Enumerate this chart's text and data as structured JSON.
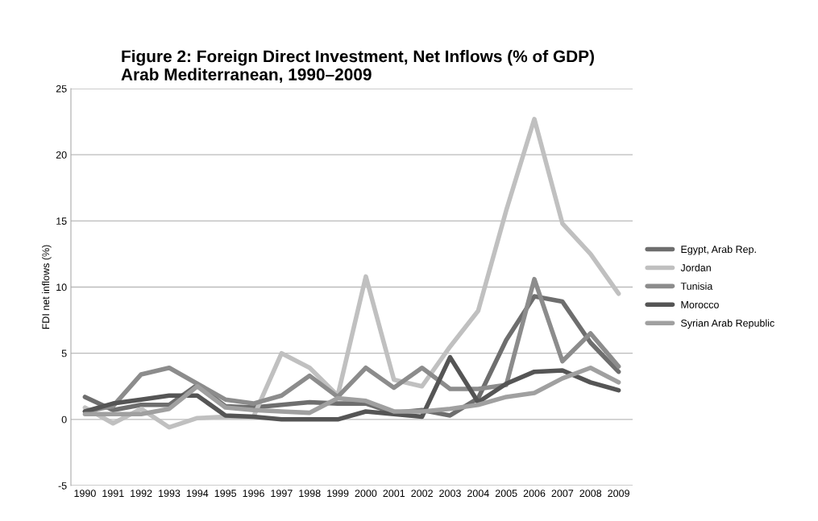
{
  "chart_data": {
    "type": "line",
    "title": "Figure 2: Foreign Direct Investment, Net Inflows (% of GDP)\nArab Mediterranean, 1990–2009",
    "ylabel": "FDI net inflows (%)",
    "categories": [
      "1990",
      "1991",
      "1992",
      "1993",
      "1994",
      "1995",
      "1996",
      "1997",
      "1998",
      "1999",
      "2000",
      "2001",
      "2002",
      "2003",
      "2004",
      "2005",
      "2006",
      "2007",
      "2008",
      "2009"
    ],
    "series": [
      {
        "name": "Egypt, Arab Rep.",
        "color": "#6e6e6e",
        "values": [
          1.7,
          0.7,
          1.1,
          1.1,
          2.6,
          1.0,
          0.9,
          1.1,
          1.3,
          1.2,
          1.2,
          0.5,
          0.7,
          0.3,
          1.6,
          6.0,
          9.3,
          8.9,
          5.8,
          3.6
        ]
      },
      {
        "name": "Jordan",
        "color": "#c0c0c0",
        "values": [
          0.9,
          -0.3,
          0.8,
          -0.6,
          0.1,
          0.2,
          0.2,
          5.0,
          3.9,
          1.8,
          10.8,
          3.0,
          2.5,
          5.5,
          8.2,
          15.8,
          22.7,
          14.8,
          12.5,
          9.5
        ]
      },
      {
        "name": "Tunisia",
        "color": "#8c8c8c",
        "values": [
          0.6,
          1.0,
          3.4,
          3.9,
          2.7,
          1.5,
          1.2,
          1.8,
          3.3,
          1.7,
          3.9,
          2.4,
          3.9,
          2.3,
          2.3,
          2.6,
          10.6,
          4.4,
          6.5,
          4.0
        ]
      },
      {
        "name": "Morocco",
        "color": "#555555",
        "values": [
          0.6,
          1.2,
          1.5,
          1.8,
          1.8,
          0.3,
          0.2,
          0.0,
          0.0,
          0.0,
          0.6,
          0.4,
          0.2,
          4.7,
          1.3,
          2.7,
          3.6,
          3.7,
          2.8,
          2.2
        ]
      },
      {
        "name": "Syrian Arab Republic",
        "color": "#a0a0a0",
        "values": [
          0.4,
          0.4,
          0.4,
          0.8,
          2.5,
          0.9,
          0.7,
          0.6,
          0.5,
          1.6,
          1.4,
          0.6,
          0.6,
          0.8,
          1.1,
          1.7,
          2.0,
          3.1,
          3.9,
          2.8
        ]
      }
    ],
    "ylim": [
      -5,
      25
    ],
    "yticks": [
      -5,
      0,
      5,
      10,
      15,
      20,
      25
    ],
    "grid": "y",
    "legend": "right",
    "marker": "none",
    "line_style": "solid"
  }
}
